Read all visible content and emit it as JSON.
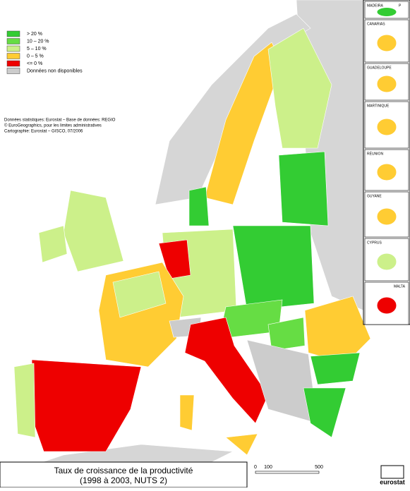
{
  "legend": {
    "items": [
      {
        "label": "> 20 %",
        "color": "#33cc33"
      },
      {
        "label": "10 – 20 %",
        "color": "#66dd44"
      },
      {
        "label": "5 – 10 %",
        "color": "#ccf08a"
      },
      {
        "label": "0 – 5 %",
        "color": "#ffcc33"
      },
      {
        "label": "<= 0 %",
        "color": "#ee0000"
      },
      {
        "label": "Données non disponibles",
        "color": "#cccccc"
      }
    ]
  },
  "source": [
    "Données statistiques: Eurostat – Base de données: REGIO",
    "© EuroGeographics, pour les limites administratives",
    "Cartographie: Eurostat – GISCO, 07/2006"
  ],
  "insets": [
    "MADEIRA",
    "P",
    "CANARIAS",
    "GUADELOUPE",
    "MARTINIQUE",
    "RÉUNION",
    "GUYANE",
    "CYPRUS",
    "MALTA"
  ],
  "scale": [
    "0",
    "100",
    "500"
  ],
  "title": [
    "Taux de croissance de la productivité",
    "(1998 à 2003, NUTS 2)"
  ],
  "logo": "eurostat"
}
